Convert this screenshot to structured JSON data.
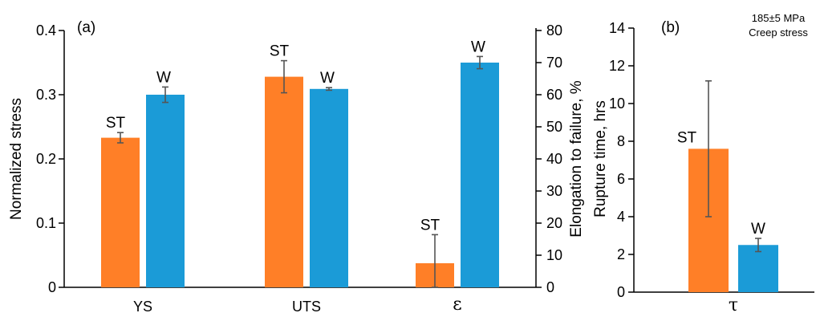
{
  "chart_data": [
    {
      "type": "bar",
      "panel_label": "(a)",
      "left_axis": {
        "label": "Normalized stress",
        "ylim": [
          0,
          0.4
        ],
        "ticks": [
          0,
          0.1,
          0.2,
          0.3,
          0.4
        ],
        "tick_labels": [
          "0",
          "0.1",
          "0.2",
          "0.3",
          "0.4"
        ]
      },
      "right_axis": {
        "label": "Elongation to failure, %",
        "ylim": [
          0,
          80
        ],
        "ticks": [
          0,
          10,
          20,
          30,
          40,
          50,
          60,
          70,
          80
        ],
        "tick_labels": [
          "0",
          "10",
          "20",
          "30",
          "40",
          "50",
          "60",
          "70",
          "80"
        ]
      },
      "categories": [
        "YS",
        "UTS",
        "ε"
      ],
      "category_axis": [
        "left",
        "left",
        "right"
      ],
      "series": [
        {
          "name": "ST",
          "color": "#ff7f27",
          "values": [
            0.233,
            0.328,
            7.5
          ],
          "errors": [
            0.008,
            0.025,
            8.9
          ]
        },
        {
          "name": "W",
          "color": "#1b9bd7",
          "values": [
            0.3,
            0.309,
            70.0
          ],
          "errors": [
            0.012,
            0.002,
            1.9
          ]
        }
      ],
      "grid": false
    },
    {
      "type": "bar",
      "panel_label": "(b)",
      "annotation_lines": [
        "185±5 MPa",
        "Creep stress"
      ],
      "left_axis": {
        "label": "Rupture time, hrs",
        "ylim": [
          0,
          14
        ],
        "ticks": [
          0,
          2,
          4,
          6,
          8,
          10,
          12,
          14
        ],
        "tick_labels": [
          "0",
          "2",
          "4",
          "6",
          "8",
          "10",
          "12",
          "14"
        ]
      },
      "categories": [
        "τ"
      ],
      "series": [
        {
          "name": "ST",
          "color": "#ff7f27",
          "values": [
            7.6
          ],
          "errors": [
            3.6
          ]
        },
        {
          "name": "W",
          "color": "#1b9bd7",
          "values": [
            2.5
          ],
          "errors": [
            0.35
          ]
        }
      ],
      "grid": false
    }
  ]
}
